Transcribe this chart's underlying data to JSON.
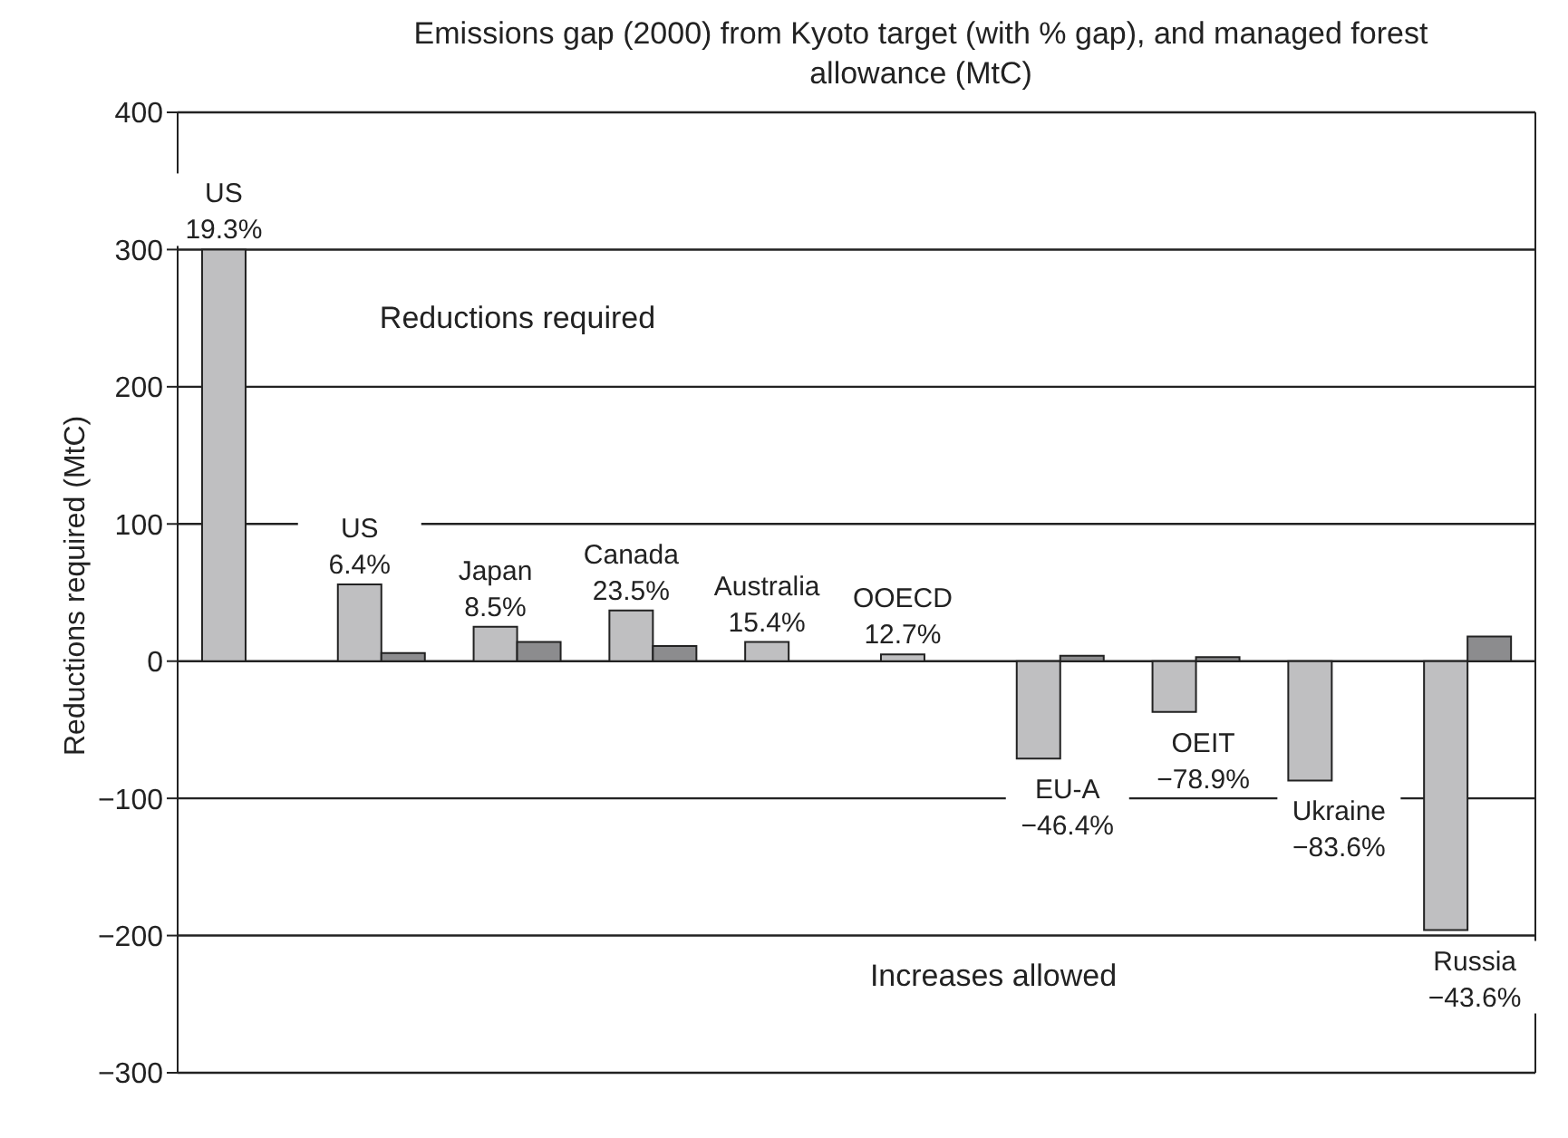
{
  "chart_data": {
    "type": "bar",
    "title": "Emissions gap (2000) from Kyoto target (with % gap), and managed forest allowance (MtC)",
    "ylabel": "Reductions required (MtC)",
    "categories": [
      null,
      null,
      null,
      null,
      null,
      null,
      null,
      null,
      null,
      null
    ],
    "series": [
      {
        "color": "#bfbfc1",
        "values": [
          300,
          56,
          25,
          37,
          14,
          5,
          -71,
          -37,
          -87,
          -196
        ]
      },
      {
        "color": "#8c8c8e",
        "values": [
          null,
          6,
          14,
          11,
          null,
          null,
          4,
          3,
          null,
          18
        ]
      }
    ],
    "ylim": [
      -300,
      400
    ],
    "yticks": [
      {
        "value": -300,
        "label": "−300"
      },
      {
        "value": -200,
        "label": "−200"
      },
      {
        "value": -100,
        "label": "−100"
      },
      0,
      100,
      200,
      300,
      400
    ],
    "grid": "y",
    "legend": false,
    "annotations": [
      "Reductions required",
      "Increases allowed",
      "US\n19.3%",
      "US\n6.4%",
      "Japan\n8.5%",
      "Canada\n23.5%",
      "Australia\n15.4%",
      "OOECD\n12.7%",
      "EU-A\n−46.4%",
      "OEIT\n−78.9%",
      "Ukraine\n−83.6%",
      "Russia\n−43.6%"
    ]
  }
}
